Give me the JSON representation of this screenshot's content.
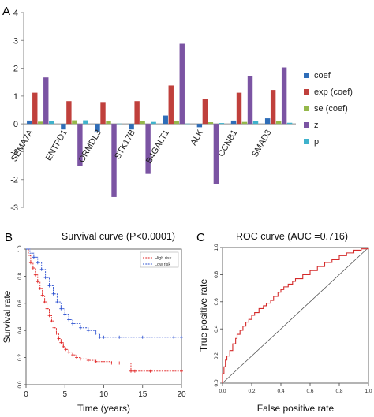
{
  "panels": {
    "A": {
      "letter": "A"
    },
    "B": {
      "letter": "B"
    },
    "C": {
      "letter": "C"
    }
  },
  "chart_data": [
    {
      "panel": "A",
      "type": "bar",
      "title": "",
      "xlabel": "",
      "ylabel": "",
      "categories": [
        "SEMA7A",
        "ENTPD1",
        "ORMDL3",
        "STK17B",
        "B4GALT1",
        "ALK",
        "CCNB1",
        "SMAD3"
      ],
      "ylim": [
        -3,
        4
      ],
      "yticks": [
        "-3",
        "-2",
        "-1",
        "0",
        "1",
        "2",
        "3",
        "4"
      ],
      "legend_position": "right",
      "series": [
        {
          "name": "coef",
          "color": "#2e6db8",
          "values": [
            0.12,
            -0.2,
            -0.27,
            -0.2,
            0.3,
            -0.12,
            0.12,
            0.2
          ]
        },
        {
          "name": "exp (coef)",
          "color": "#c0403c",
          "values": [
            1.12,
            0.82,
            0.76,
            0.82,
            1.38,
            0.9,
            1.12,
            1.22
          ]
        },
        {
          "name": "se (coef)",
          "color": "#95b84b",
          "values": [
            0.08,
            0.13,
            0.1,
            0.11,
            0.1,
            0.06,
            0.07,
            0.1
          ]
        },
        {
          "name": "z",
          "color": "#7b54a3",
          "values": [
            1.67,
            -1.5,
            -2.63,
            -1.8,
            2.88,
            -2.15,
            1.72,
            2.03
          ]
        },
        {
          "name": "p",
          "color": "#3fb2cc",
          "values": [
            0.1,
            0.13,
            0.01,
            0.07,
            0.01,
            0.03,
            0.09,
            0.04
          ]
        }
      ]
    },
    {
      "panel": "B",
      "type": "line",
      "title": "Survival curve (P<0.0001)",
      "xlabel": "Time (years)",
      "ylabel": "Survival rate",
      "xlim": [
        0,
        20
      ],
      "ylim": [
        0,
        1
      ],
      "xticks": [
        "0",
        "5",
        "10",
        "15",
        "20"
      ],
      "yticks": [
        "0.0",
        "0.2",
        "0.4",
        "0.6",
        "0.8",
        "1.0"
      ],
      "legend_position": "top-right",
      "series": [
        {
          "name": "High risk",
          "color": "#e02020",
          "x": [
            0,
            0.3,
            0.6,
            0.9,
            1.2,
            1.5,
            1.8,
            2.1,
            2.4,
            2.7,
            3.0,
            3.3,
            3.6,
            3.9,
            4.2,
            4.5,
            4.8,
            5.1,
            5.5,
            6.0,
            6.5,
            7.0,
            8.0,
            9.0,
            11.0,
            12.0,
            13.5,
            14.0,
            16.0,
            20.0
          ],
          "y": [
            1.0,
            0.95,
            0.9,
            0.86,
            0.81,
            0.76,
            0.71,
            0.66,
            0.61,
            0.56,
            0.51,
            0.47,
            0.42,
            0.38,
            0.34,
            0.31,
            0.28,
            0.26,
            0.24,
            0.22,
            0.2,
            0.19,
            0.18,
            0.17,
            0.16,
            0.16,
            0.1,
            0.1,
            0.1,
            0.1
          ]
        },
        {
          "name": "Low risk",
          "color": "#2a4fd0",
          "x": [
            0,
            0.5,
            1.0,
            1.5,
            2.0,
            2.5,
            3.0,
            3.5,
            4.0,
            4.5,
            5.0,
            5.5,
            6.0,
            7.0,
            8.0,
            9.0,
            9.5,
            10.0,
            12.0,
            15.0,
            19.0,
            20.0
          ],
          "y": [
            1.0,
            0.97,
            0.94,
            0.9,
            0.85,
            0.79,
            0.73,
            0.67,
            0.61,
            0.56,
            0.52,
            0.48,
            0.45,
            0.42,
            0.4,
            0.38,
            0.35,
            0.35,
            0.35,
            0.35,
            0.35,
            0.35
          ]
        }
      ]
    },
    {
      "panel": "C",
      "type": "line",
      "title": "ROC curve (AUC =0.716)",
      "xlabel": "False positive rate",
      "ylabel": "True positive rate",
      "xlim": [
        0,
        1
      ],
      "ylim": [
        0,
        1
      ],
      "xticks": [
        "0.0",
        "0.2",
        "0.4",
        "0.6",
        "0.8",
        "1.0"
      ],
      "yticks": [
        "0.0",
        "0.2",
        "0.4",
        "0.6",
        "0.8",
        "1.0"
      ],
      "series": [
        {
          "name": "",
          "color": "#d42a2a",
          "x": [
            0,
            0,
            0.01,
            0.02,
            0.03,
            0.05,
            0.07,
            0.09,
            0.1,
            0.12,
            0.14,
            0.16,
            0.18,
            0.2,
            0.22,
            0.25,
            0.28,
            0.3,
            0.33,
            0.35,
            0.38,
            0.4,
            0.42,
            0.45,
            0.48,
            0.5,
            0.55,
            0.6,
            0.65,
            0.7,
            0.75,
            0.8,
            0.85,
            0.9,
            0.95,
            1.0
          ],
          "y": [
            0,
            0.07,
            0.12,
            0.17,
            0.2,
            0.24,
            0.29,
            0.33,
            0.36,
            0.39,
            0.42,
            0.45,
            0.47,
            0.5,
            0.52,
            0.55,
            0.57,
            0.59,
            0.61,
            0.64,
            0.67,
            0.69,
            0.71,
            0.73,
            0.75,
            0.77,
            0.8,
            0.83,
            0.86,
            0.89,
            0.91,
            0.94,
            0.96,
            0.98,
            0.99,
            1.0
          ]
        },
        {
          "name": "",
          "color": "#555555",
          "x": [
            0,
            1
          ],
          "y": [
            0,
            1
          ]
        }
      ]
    }
  ]
}
